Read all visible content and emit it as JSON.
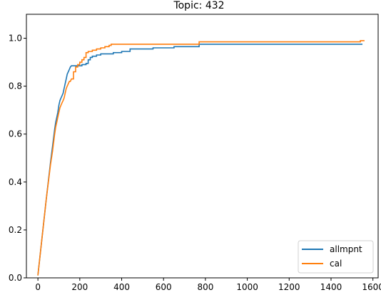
{
  "chart_data": {
    "type": "line",
    "title": "Topic: 432",
    "xlabel": "",
    "ylabel": "",
    "xlim": [
      -55,
      1625
    ],
    "ylim": [
      0.0,
      1.1
    ],
    "xticks": [
      "0",
      "200",
      "400",
      "600",
      "800",
      "1000",
      "1200",
      "1400",
      "1600"
    ],
    "yticks": [
      "0.0",
      "0.2",
      "0.4",
      "0.6",
      "0.8",
      "1.0"
    ],
    "grid": false,
    "legend": "lower-right",
    "series": [
      {
        "name": "allmpnt",
        "color": "#1f77b4",
        "x": [
          0,
          20,
          40,
          60,
          70,
          80,
          85,
          90,
          95,
          100,
          105,
          110,
          115,
          120,
          125,
          130,
          135,
          140,
          145,
          150,
          155,
          160,
          165,
          170,
          180,
          200,
          210,
          220,
          230,
          240,
          250,
          260,
          270,
          280,
          290,
          300,
          320,
          340,
          360,
          380,
          400,
          420,
          440,
          460,
          480,
          500,
          550,
          600,
          650,
          700,
          750,
          770,
          800,
          900,
          1000,
          1100,
          1200,
          1300,
          1400,
          1500,
          1550
        ],
        "y": [
          0.01,
          0.17,
          0.33,
          0.48,
          0.55,
          0.62,
          0.65,
          0.67,
          0.69,
          0.72,
          0.74,
          0.75,
          0.76,
          0.77,
          0.79,
          0.81,
          0.83,
          0.85,
          0.86,
          0.87,
          0.88,
          0.885,
          0.885,
          0.885,
          0.885,
          0.885,
          0.89,
          0.89,
          0.895,
          0.91,
          0.92,
          0.925,
          0.925,
          0.93,
          0.93,
          0.935,
          0.935,
          0.935,
          0.94,
          0.94,
          0.945,
          0.945,
          0.955,
          0.955,
          0.955,
          0.955,
          0.96,
          0.96,
          0.965,
          0.965,
          0.965,
          0.975,
          0.975,
          0.975,
          0.975,
          0.975,
          0.975,
          0.975,
          0.975,
          0.975,
          0.975
        ]
      },
      {
        "name": "cal",
        "color": "#ff7f0e",
        "x": [
          0,
          20,
          40,
          60,
          70,
          80,
          85,
          90,
          95,
          100,
          105,
          110,
          115,
          120,
          125,
          130,
          135,
          140,
          145,
          150,
          155,
          160,
          170,
          180,
          190,
          200,
          210,
          220,
          230,
          240,
          260,
          280,
          300,
          320,
          340,
          350,
          380,
          400,
          450,
          500,
          600,
          700,
          760,
          770,
          800,
          900,
          1000,
          1100,
          1200,
          1300,
          1400,
          1500,
          1530,
          1540,
          1560
        ],
        "y": [
          0.01,
          0.17,
          0.33,
          0.47,
          0.53,
          0.6,
          0.63,
          0.65,
          0.67,
          0.69,
          0.71,
          0.72,
          0.73,
          0.74,
          0.75,
          0.77,
          0.79,
          0.8,
          0.81,
          0.82,
          0.82,
          0.83,
          0.86,
          0.88,
          0.89,
          0.9,
          0.91,
          0.92,
          0.94,
          0.945,
          0.95,
          0.955,
          0.96,
          0.965,
          0.97,
          0.975,
          0.975,
          0.975,
          0.975,
          0.975,
          0.975,
          0.975,
          0.975,
          0.985,
          0.985,
          0.985,
          0.985,
          0.985,
          0.985,
          0.985,
          0.985,
          0.985,
          0.985,
          0.99,
          0.99
        ]
      }
    ]
  }
}
